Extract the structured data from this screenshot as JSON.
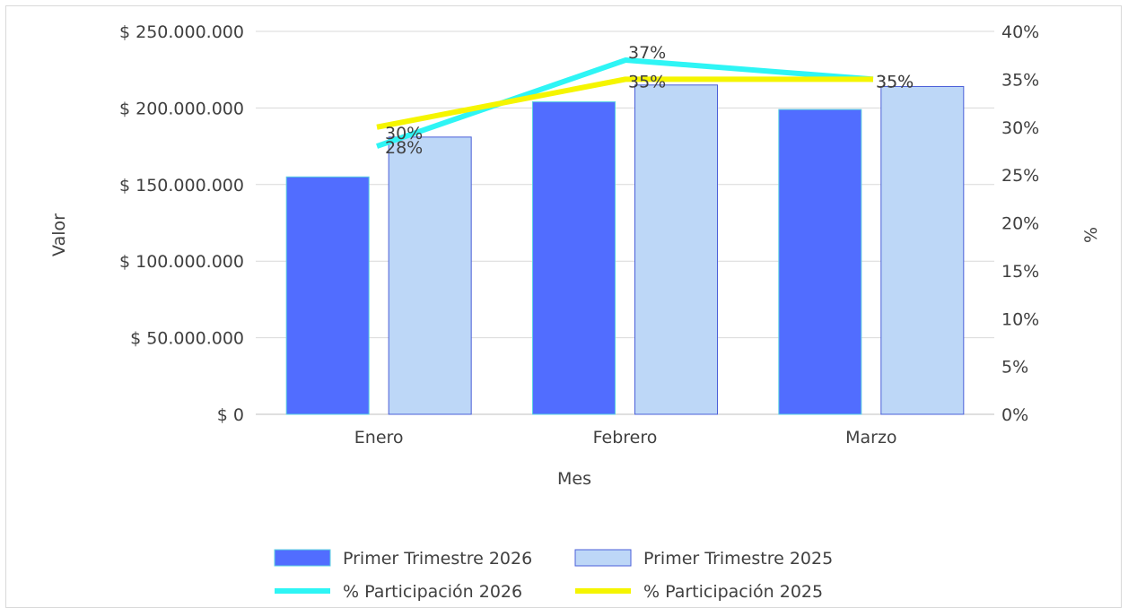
{
  "chart_data": {
    "type": "bar",
    "categories": [
      "Enero",
      "Febrero",
      "Marzo"
    ],
    "series": [
      {
        "name": "Primer Trimestre  2026",
        "kind": "bar",
        "axis": "left",
        "color": "#516dff",
        "values": [
          155000000,
          204000000,
          199000000
        ]
      },
      {
        "name": "Primer Trimestre  2025",
        "kind": "bar",
        "axis": "right_bar",
        "color": "#bdd7f7",
        "values": [
          181000000,
          215000000,
          214000000
        ]
      },
      {
        "name": "% Participación 2026",
        "kind": "line",
        "axis": "right",
        "color": "#2ef5f5",
        "values": [
          28,
          37,
          35
        ],
        "labels": [
          "28%",
          "37%",
          "35%"
        ]
      },
      {
        "name": "% Participación 2025",
        "kind": "line",
        "axis": "right",
        "color": "#f5f500",
        "values": [
          30,
          35,
          35
        ],
        "labels": [
          "30%",
          "35%",
          "35%"
        ]
      }
    ],
    "xlabel": "Mes",
    "ylabel": "Valor",
    "y2label": "%",
    "ylim": [
      0,
      250000000
    ],
    "y2lim": [
      0,
      40
    ],
    "y_ticks": [
      "$ 0",
      "$ 50.000.000",
      "$ 100.000.000",
      "$ 150.000.000",
      "$ 200.000.000",
      "$ 250.000.000"
    ],
    "y_tick_values": [
      0,
      50000000,
      100000000,
      150000000,
      200000000,
      250000000
    ],
    "y2_ticks": [
      "0%",
      "5%",
      "10%",
      "15%",
      "20%",
      "25%",
      "30%",
      "35%",
      "40%"
    ],
    "y2_tick_values": [
      0,
      5,
      10,
      15,
      20,
      25,
      30,
      35,
      40
    ],
    "grid": true,
    "legend_position": "bottom"
  }
}
